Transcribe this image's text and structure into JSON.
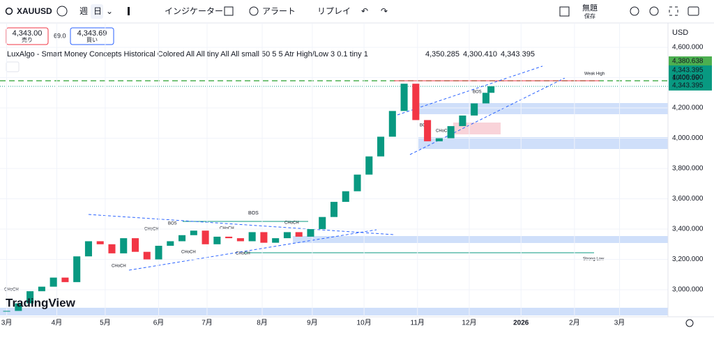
{
  "toolbar": {
    "symbol": "XAUUSD",
    "week": "週",
    "day": "日",
    "indicators": "インジケーター",
    "alert": "アラート",
    "replay": "リプレイ",
    "layout_name": "無題",
    "save": "保存"
  },
  "quote": {
    "sell_price": "4,343.00",
    "sell": "売り",
    "spread": "69.0",
    "buy_price": "4,343.69",
    "buy": "買い"
  },
  "indicator": {
    "name": "LuxAlgo - Smart Money Concepts Historical Colored All All tiny All All small 50 5 5 Atr High/Low 3 0.1 tiny 1",
    "values": [
      "4,350.285",
      "4,300.410",
      "4,343.395"
    ]
  },
  "price_tags": {
    "currency": "USD",
    "high": "4,380.638",
    "last": "4,343.395",
    "countdown": "10:06:59",
    "close": "4,343.395"
  },
  "annotations": [
    "BOS",
    "CHoCH",
    "CHoCH",
    "BOS",
    "CHoCH",
    "CHoCH",
    "CHoCH",
    "CHoCH",
    "BOS",
    "CHoCH",
    "BOS",
    "Weak High",
    "Strong Low",
    "CHoCH"
  ],
  "chart_data": {
    "type": "candlestick",
    "series": [
      {
        "name": "XAUUSD",
        "color": "#089981",
        "down_color": "#f23645",
        "x": [
          0,
          7,
          14,
          21,
          28,
          35,
          42,
          49,
          56,
          63,
          70,
          77,
          84,
          91,
          98,
          105,
          112,
          119,
          126,
          133,
          140,
          147,
          154,
          161,
          168,
          175,
          182,
          189,
          196,
          203,
          210,
          217,
          224,
          231,
          238,
          245,
          252,
          259,
          266,
          273,
          280,
          287,
          290
        ],
        "values": [
          2860,
          2910,
          2990,
          3020,
          3080,
          3050,
          3220,
          3320,
          3300,
          3240,
          3340,
          3250,
          3200,
          3290,
          3320,
          3360,
          3390,
          3300,
          3350,
          3340,
          3320,
          3380,
          3310,
          3340,
          3380,
          3350,
          3400,
          3480,
          3580,
          3650,
          3760,
          3880,
          4010,
          4180,
          4360,
          4120,
          3980,
          4000,
          4080,
          4150,
          4230,
          4300,
          4343
        ]
      }
    ],
    "xlim": [
      -4,
      396
    ],
    "xticks": [
      {
        "value": 0,
        "label": "3月"
      },
      {
        "value": 30,
        "label": "4月"
      },
      {
        "value": 59,
        "label": "5月"
      },
      {
        "value": 91,
        "label": "6月"
      },
      {
        "value": 120,
        "label": "7月"
      },
      {
        "value": 153,
        "label": "8月"
      },
      {
        "value": 183,
        "label": "9月"
      },
      {
        "value": 214,
        "label": "10月"
      },
      {
        "value": 246,
        "label": "11月"
      },
      {
        "value": 277,
        "label": "12月"
      },
      {
        "value": 308,
        "label": "2026"
      },
      {
        "value": 340,
        "label": "2月"
      },
      {
        "value": 367,
        "label": "3月"
      }
    ],
    "ylim": [
      2821,
      4761
    ],
    "yticks": [
      {
        "value": 3000,
        "label": "3,000.000"
      },
      {
        "value": 3200,
        "label": "3,200.000"
      },
      {
        "value": 3400,
        "label": "3,400.000"
      },
      {
        "value": 3600,
        "label": "3,600.000"
      },
      {
        "value": 3800,
        "label": "3,800.000"
      },
      {
        "value": 4000,
        "label": "4,000.000"
      },
      {
        "value": 4200,
        "label": "4,200.000"
      },
      {
        "value": 4400,
        "label": "4,400.000"
      },
      {
        "value": 4600,
        "label": "4,600.000"
      }
    ]
  }
}
